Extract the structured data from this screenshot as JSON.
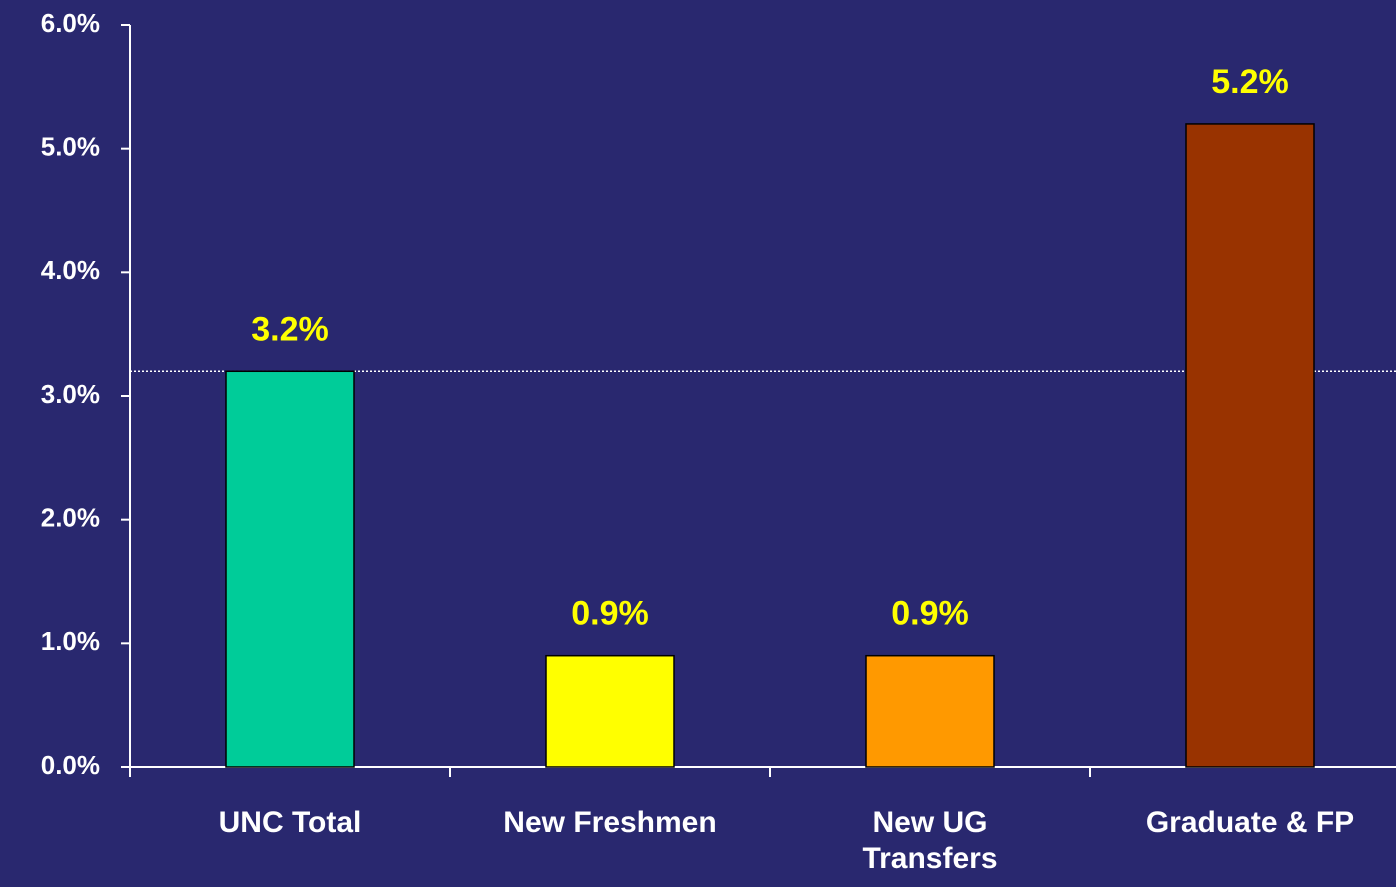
{
  "chart_data": {
    "type": "bar",
    "categories": [
      "UNC Total",
      "New Freshmen",
      "New UG\nTransfers",
      "Graduate & FP"
    ],
    "values": [
      3.2,
      0.9,
      0.9,
      5.2
    ],
    "value_labels": [
      "3.2%",
      "0.9%",
      "0.9%",
      "5.2%"
    ],
    "colors": [
      "#00cc99",
      "#ffff00",
      "#ff9900",
      "#993300"
    ],
    "ylim": [
      0,
      6
    ],
    "yticks": [
      {
        "value": 0,
        "label": "0.0%"
      },
      {
        "value": 1,
        "label": "1.0%"
      },
      {
        "value": 2,
        "label": "2.0%"
      },
      {
        "value": 3,
        "label": "3.0%"
      },
      {
        "value": 4,
        "label": "4.0%"
      },
      {
        "value": 5,
        "label": "5.0%"
      },
      {
        "value": 6,
        "label": "6.0%"
      }
    ],
    "reference_line": 3.2,
    "grid": false
  }
}
